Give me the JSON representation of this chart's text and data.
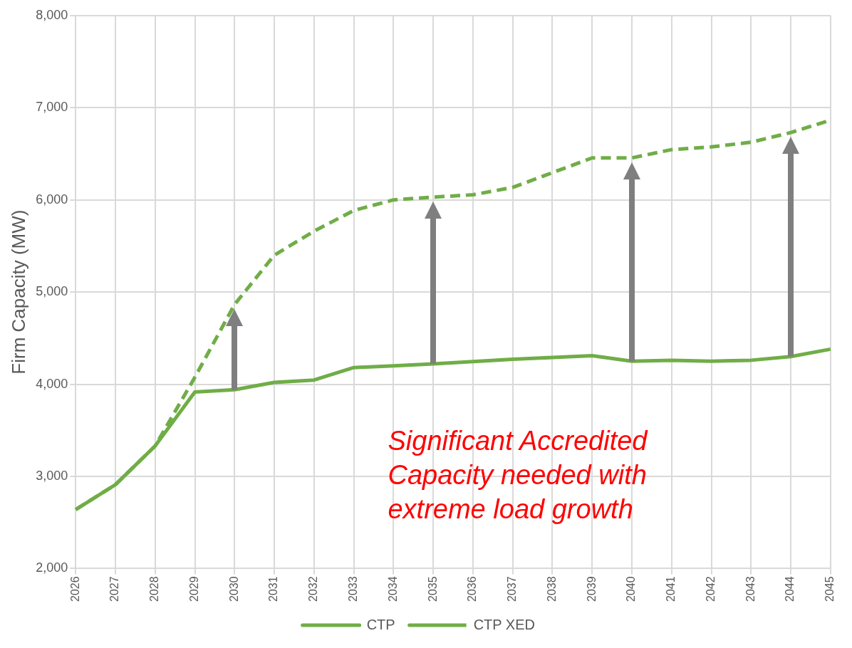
{
  "chart_data": {
    "type": "line",
    "ylabel": "Firm Capacity (MW)",
    "categories": [
      "2026",
      "2027",
      "2028",
      "2029",
      "2030",
      "2031",
      "2032",
      "2033",
      "2034",
      "2035",
      "2036",
      "2037",
      "2038",
      "2039",
      "2040",
      "2041",
      "2042",
      "2043",
      "2044",
      "2045"
    ],
    "series": [
      {
        "name": "CTP",
        "color": "#70ad47",
        "line_style": "solid",
        "values": [
          2640,
          2910,
          3330,
          3915,
          3940,
          4020,
          4045,
          4180,
          4200,
          4220,
          4245,
          4270,
          4290,
          4310,
          4250,
          4260,
          4250,
          4260,
          4300,
          4380
        ]
      },
      {
        "name": "CTP XED",
        "color": "#70ad47",
        "line_style": "dashed",
        "values": [
          2640,
          2910,
          3330,
          4075,
          4865,
          5400,
          5660,
          5885,
          6000,
          6030,
          6055,
          6135,
          6295,
          6455,
          6455,
          6545,
          6575,
          6625,
          6730,
          6865
        ]
      }
    ],
    "ylim": [
      2000,
      8000
    ],
    "yticks": [
      {
        "value": 2000,
        "label": "2,000"
      },
      {
        "value": 3000,
        "label": "3,000"
      },
      {
        "value": 4000,
        "label": "4,000"
      },
      {
        "value": 5000,
        "label": "5,000"
      },
      {
        "value": 6000,
        "label": "6,000"
      },
      {
        "value": 7000,
        "label": "7,000"
      },
      {
        "value": 8000,
        "label": "8,000"
      }
    ],
    "grid": true,
    "legend": "bottom",
    "marker": "none",
    "annotations": [
      "Significant Accredited Capacity needed with extreme load growth"
    ]
  }
}
